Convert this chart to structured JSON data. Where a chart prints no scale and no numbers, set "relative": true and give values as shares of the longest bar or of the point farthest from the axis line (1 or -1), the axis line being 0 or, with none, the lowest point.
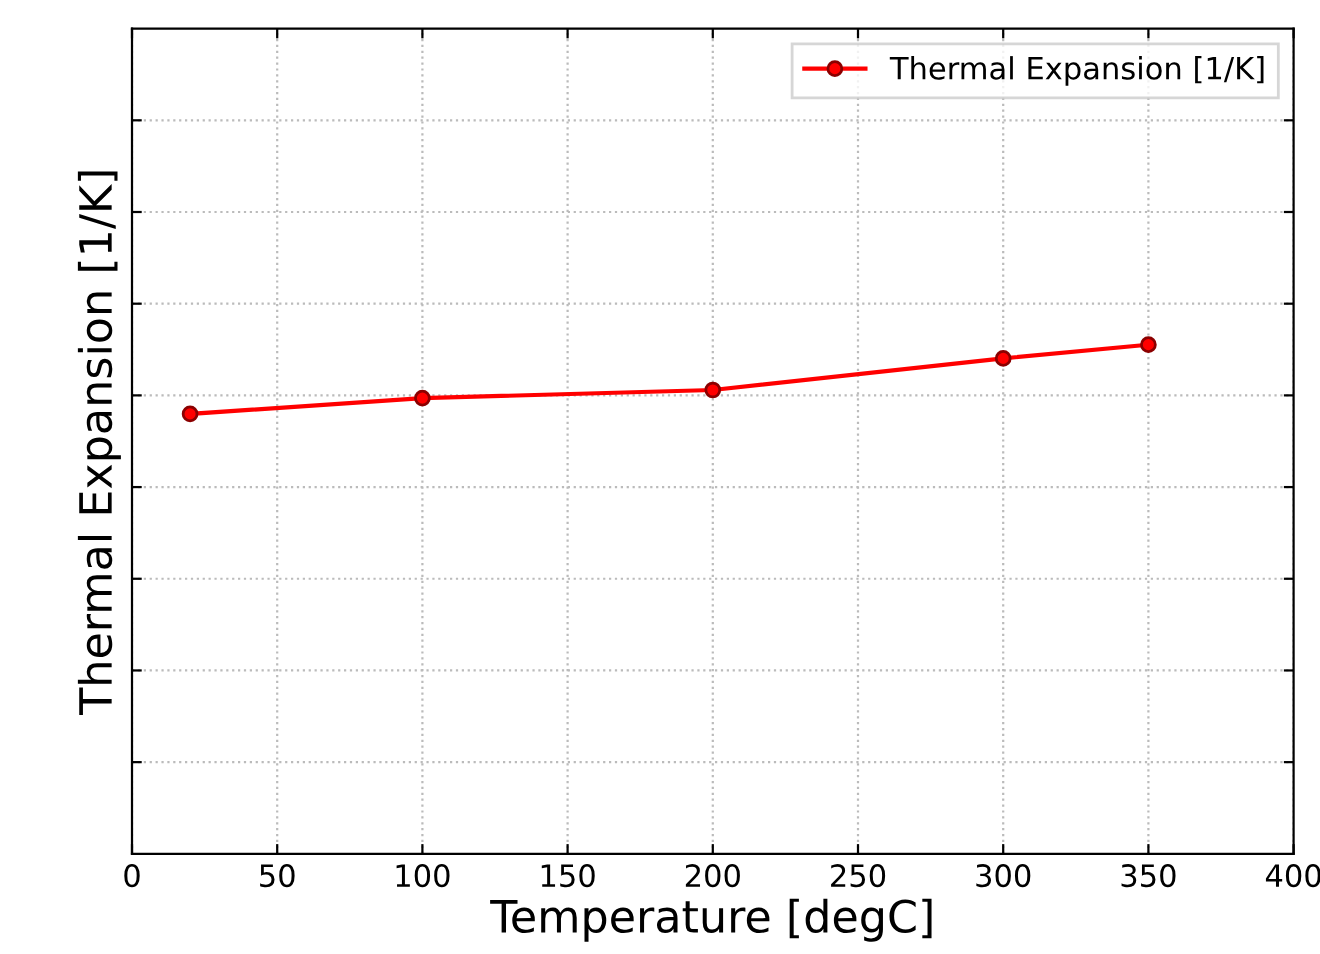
{
  "chart_data": {
    "type": "line",
    "xlabel": "Temperature [degC]",
    "ylabel": "Thermal Expansion [1/K]",
    "x": [
      20,
      100,
      200,
      300,
      350
    ],
    "series": [
      {
        "name": "Thermal Expansion [1/K]",
        "color": "#ff0000",
        "values": [
          0.864,
          0.895,
          0.911,
          0.973,
          1.0
        ]
      }
    ],
    "relative": true,
    "xlim": [
      0,
      400
    ],
    "xticks": [
      0,
      50,
      100,
      150,
      200,
      250,
      300,
      350,
      400
    ],
    "tick_labels": "x",
    "grid": true,
    "legend": "top right",
    "marker": "circle",
    "line_style": "solid"
  }
}
